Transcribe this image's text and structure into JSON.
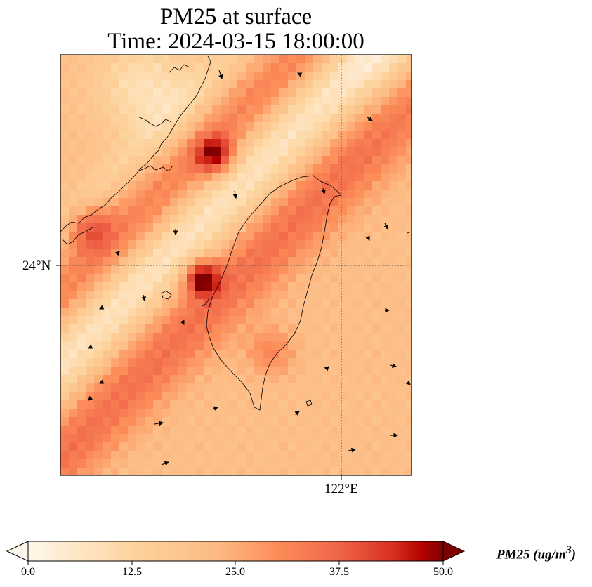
{
  "title_line1": "PM25 at surface",
  "title_line2": "Time: 2024-03-15 18:00:00",
  "axes": {
    "lat_gridline": "24°N",
    "lon_gridline": "122°E"
  },
  "colorbar": {
    "cmap": "OrRd",
    "min": 0.0,
    "max": 50.0,
    "extend": "both",
    "ticks": [
      "0.0",
      "12.5",
      "25.0",
      "37.5",
      "50.0"
    ],
    "label_prefix": "PM25 (ug/m",
    "label_power": "3",
    "label_suffix": ")"
  },
  "map": {
    "projection": "PlateCarree",
    "gridlines": "dotted",
    "wind_vectors": true,
    "coastlines": true
  },
  "colors": {
    "low": "#fff7ec",
    "mid": "#fdbb84",
    "high": "#ef6548",
    "max": "#7f0000",
    "frame": "#000000"
  }
}
